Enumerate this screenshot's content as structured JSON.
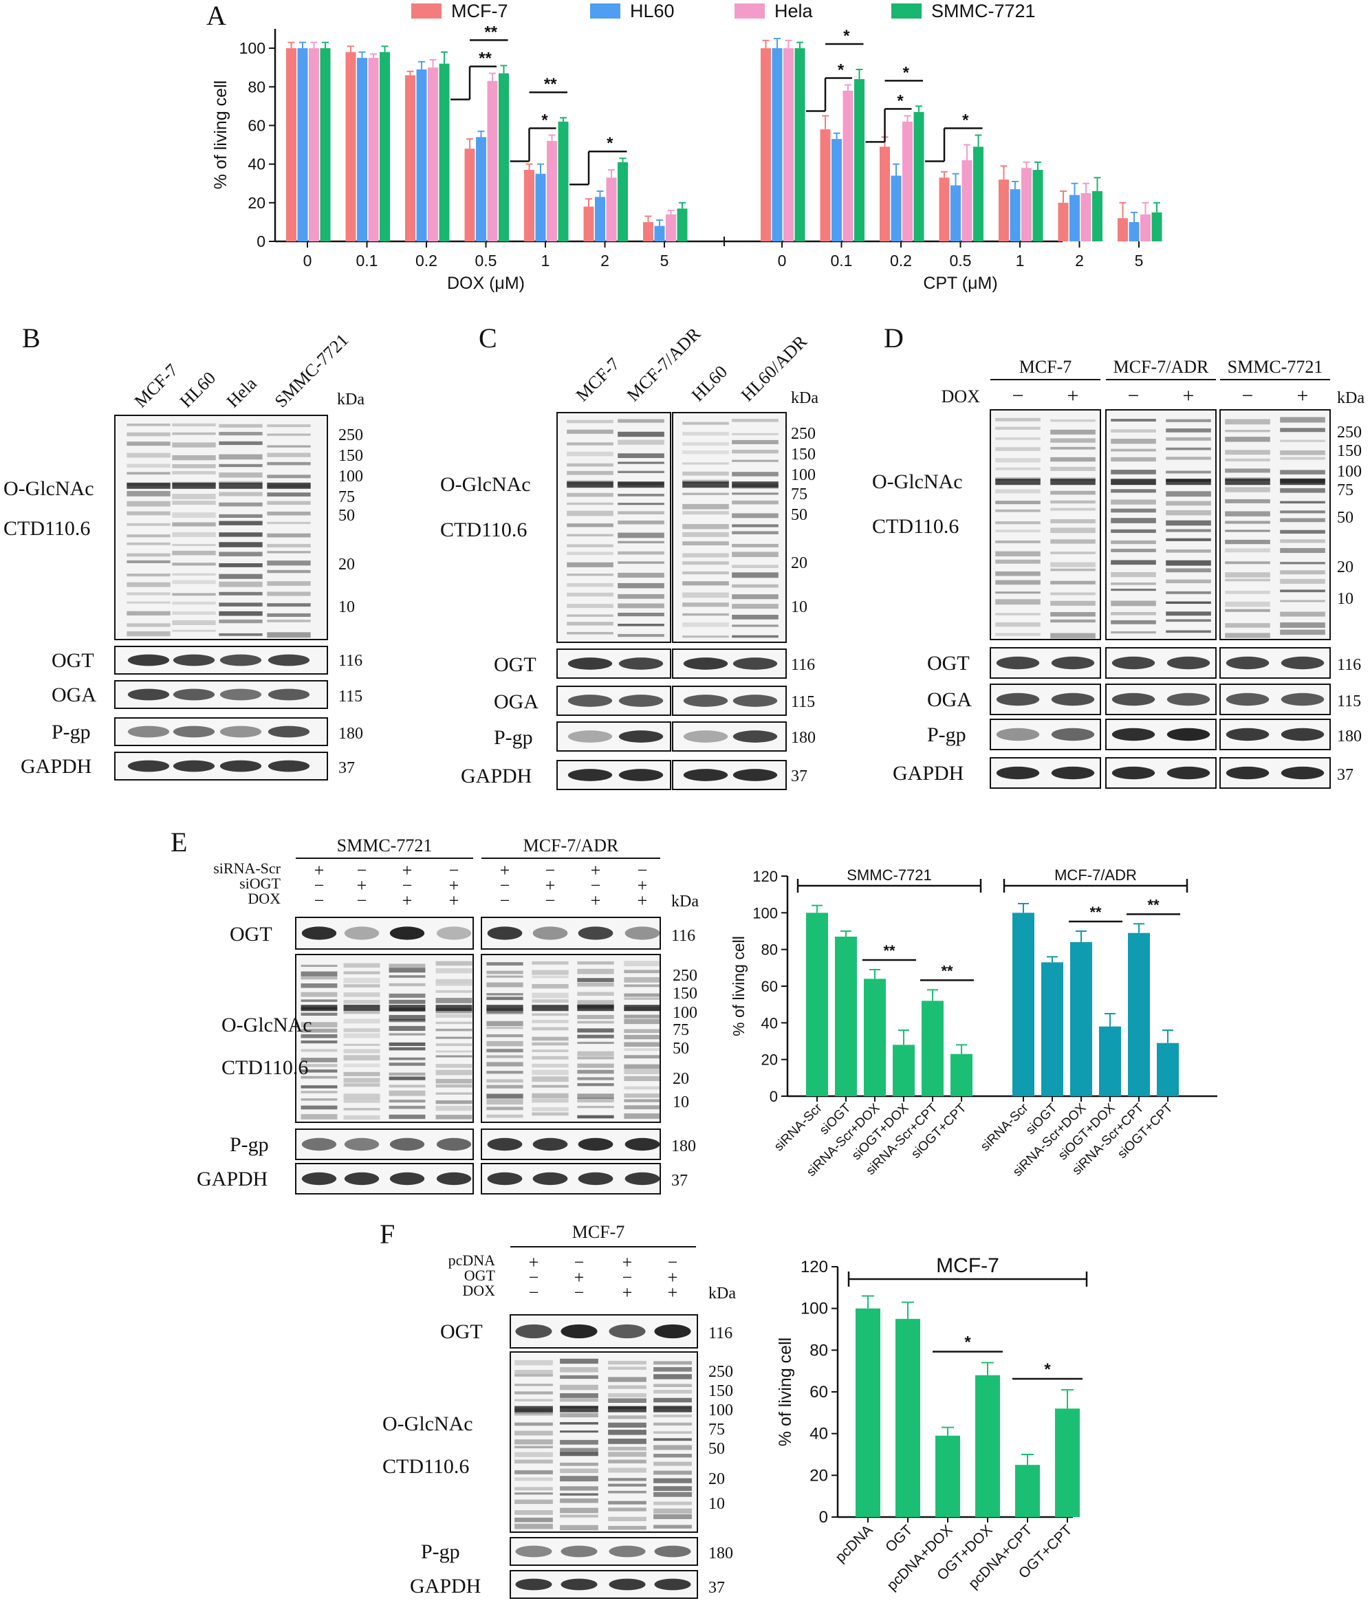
{
  "colors": {
    "mcf7": "#f47c7c",
    "hl60": "#4f9ef2",
    "hela": "#f39bc9",
    "smmc": "#18b66e",
    "green": "#1bbf73",
    "teal": "#0f9bb0"
  },
  "panel_letters": [
    "A",
    "B",
    "C",
    "D",
    "E",
    "F"
  ],
  "panelA": {
    "legend": [
      "MCF-7",
      "HL60",
      "Hela",
      "SMMC-7721"
    ]
  },
  "blot_text": {
    "kda": "kDa",
    "o_glcnac": "O-GlcNAc",
    "ctd": "CTD110.6",
    "ogt": "OGT",
    "oga": "OGA",
    "pgp": "P-gp",
    "gapdh": "GAPDH",
    "dox": "DOX",
    "plus": "+",
    "minus": "−",
    "mw_main": [
      "250",
      "150",
      "100",
      "75",
      "50",
      "20",
      "10"
    ],
    "mw_ogt": "116",
    "mw_oga": "115",
    "mw_pgp": "180",
    "mw_gapdh": "37"
  },
  "panelB": {
    "lanes": [
      "MCF-7",
      "HL60",
      "Hela",
      "SMMC-7721"
    ]
  },
  "panelC": {
    "lanes": [
      "MCF-7",
      "MCF-7/ADR",
      "HL60",
      "HL60/ADR"
    ]
  },
  "panelD": {
    "groups": [
      "MCF-7",
      "MCF-7/ADR",
      "SMMC-7721"
    ]
  },
  "panelE": {
    "groups": [
      "SMMC-7721",
      "MCF-7/ADR"
    ],
    "rows": [
      "siRNA-Scr",
      "siOGT",
      "DOX"
    ]
  },
  "panelF": {
    "group": "MCF-7",
    "rows": [
      "pcDNA",
      "OGT",
      "DOX"
    ]
  },
  "chart_data": [
    {
      "type": "bar",
      "title": "",
      "ylabel": "% of living cell",
      "ylim": [
        0,
        110
      ],
      "yticks": [
        0,
        20,
        40,
        60,
        80,
        100
      ],
      "series_names": [
        "MCF-7",
        "HL60",
        "Hela",
        "SMMC-7721"
      ],
      "panels": [
        {
          "xlabel": "DOX (μM)",
          "categories": [
            "0",
            "0.1",
            "0.2",
            "0.5",
            "1",
            "2",
            "5"
          ],
          "series": [
            {
              "name": "MCF-7",
              "values": [
                100,
                98,
                86,
                48,
                37,
                18,
                10
              ],
              "errors": [
                3,
                3,
                2,
                5,
                3,
                4,
                3
              ]
            },
            {
              "name": "HL60",
              "values": [
                100,
                95,
                89,
                54,
                35,
                23,
                8
              ],
              "errors": [
                3,
                3,
                4,
                3,
                5,
                3,
                3
              ]
            },
            {
              "name": "Hela",
              "values": [
                100,
                95,
                90,
                83,
                52,
                33,
                14
              ],
              "errors": [
                3,
                2,
                4,
                4,
                3,
                4,
                2
              ]
            },
            {
              "name": "SMMC-7721",
              "values": [
                100,
                98,
                92,
                87,
                62,
                41,
                17
              ],
              "errors": [
                3,
                3,
                6,
                4,
                2,
                2,
                3
              ]
            }
          ],
          "significance": [
            {
              "from": "0.5:MCF-7",
              "to": "0.5:Hela",
              "label": "**"
            },
            {
              "from": "0.5:MCF-7",
              "to": "0.5:SMMC-7721",
              "label": "**"
            },
            {
              "from": "1:MCF-7",
              "to": "1:Hela",
              "label": "*"
            },
            {
              "from": "1:MCF-7",
              "to": "1:SMMC-7721",
              "label": "**"
            },
            {
              "from": "2:MCF-7",
              "to": "2:SMMC-7721",
              "label": "*"
            }
          ]
        },
        {
          "xlabel": "CPT (μM)",
          "categories": [
            "0",
            "0.1",
            "0.2",
            "0.5",
            "1",
            "2",
            "5"
          ],
          "series": [
            {
              "name": "MCF-7",
              "values": [
                100,
                58,
                49,
                33,
                32,
                20,
                12
              ],
              "errors": [
                4,
                7,
                5,
                3,
                7,
                6,
                8
              ]
            },
            {
              "name": "HL60",
              "values": [
                100,
                53,
                34,
                29,
                27,
                24,
                10
              ],
              "errors": [
                5,
                3,
                6,
                6,
                4,
                6,
                5
              ]
            },
            {
              "name": "Hela",
              "values": [
                100,
                78,
                62,
                42,
                38,
                25,
                14
              ],
              "errors": [
                4,
                3,
                3,
                8,
                3,
                5,
                6
              ]
            },
            {
              "name": "SMMC-7721",
              "values": [
                100,
                84,
                67,
                49,
                37,
                26,
                15
              ],
              "errors": [
                3,
                5,
                3,
                6,
                4,
                7,
                5
              ]
            }
          ],
          "significance": [
            {
              "from": "0.1:MCF-7",
              "to": "0.1:Hela",
              "label": "*"
            },
            {
              "from": "0.1:MCF-7",
              "to": "0.1:SMMC-7721",
              "label": "*"
            },
            {
              "from": "0.2:MCF-7",
              "to": "0.2:Hela",
              "label": "*"
            },
            {
              "from": "0.2:MCF-7",
              "to": "0.2:SMMC-7721",
              "label": "*"
            },
            {
              "from": "0.5:MCF-7",
              "to": "0.5:SMMC-7721",
              "label": "*"
            }
          ]
        }
      ]
    },
    {
      "type": "bar",
      "title": "",
      "ylabel": "% of living cell",
      "ylim": [
        0,
        120
      ],
      "yticks": [
        0,
        20,
        40,
        60,
        80,
        100,
        120
      ],
      "groups": [
        {
          "label": "SMMC-7721",
          "color": "green",
          "categories": [
            "siRNA-Scr",
            "siOGT",
            "siRNA-Scr+DOX",
            "siOGT+DOX",
            "siRNA-Scr+CPT",
            "siOGT+CPT"
          ],
          "values": [
            100,
            87,
            64,
            28,
            52,
            23
          ],
          "errors": [
            4,
            3,
            5,
            8,
            6,
            5
          ]
        },
        {
          "label": "MCF-7/ADR",
          "color": "teal",
          "categories": [
            "siRNA-Scr",
            "siOGT",
            "siRNA-Scr+DOX",
            "siOGT+DOX",
            "siRNA-Scr+CPT",
            "siOGT+CPT"
          ],
          "values": [
            100,
            73,
            84,
            38,
            89,
            29
          ],
          "errors": [
            5,
            3,
            6,
            7,
            5,
            7
          ]
        }
      ],
      "significance": [
        {
          "group": 0,
          "from": 2,
          "to": 3,
          "label": "**"
        },
        {
          "group": 0,
          "from": 4,
          "to": 5,
          "label": "**"
        },
        {
          "group": 1,
          "from": 2,
          "to": 3,
          "label": "**"
        },
        {
          "group": 1,
          "from": 4,
          "to": 5,
          "label": "**"
        }
      ]
    },
    {
      "type": "bar",
      "title": "",
      "ylabel": "% of living cell",
      "ylim": [
        0,
        120
      ],
      "yticks": [
        0,
        20,
        40,
        60,
        80,
        100,
        120
      ],
      "group_label": "MCF-7",
      "categories": [
        "pcDNA",
        "OGT",
        "pcDNA+DOX",
        "OGT+DOX",
        "pcDNA+CPT",
        "OGT+CPT"
      ],
      "values": [
        100,
        95,
        39,
        68,
        25,
        52
      ],
      "errors": [
        6,
        8,
        4,
        6,
        5,
        9
      ],
      "significance": [
        {
          "from": 2,
          "to": 3,
          "label": "*"
        },
        {
          "from": 4,
          "to": 5,
          "label": "*"
        }
      ]
    }
  ]
}
